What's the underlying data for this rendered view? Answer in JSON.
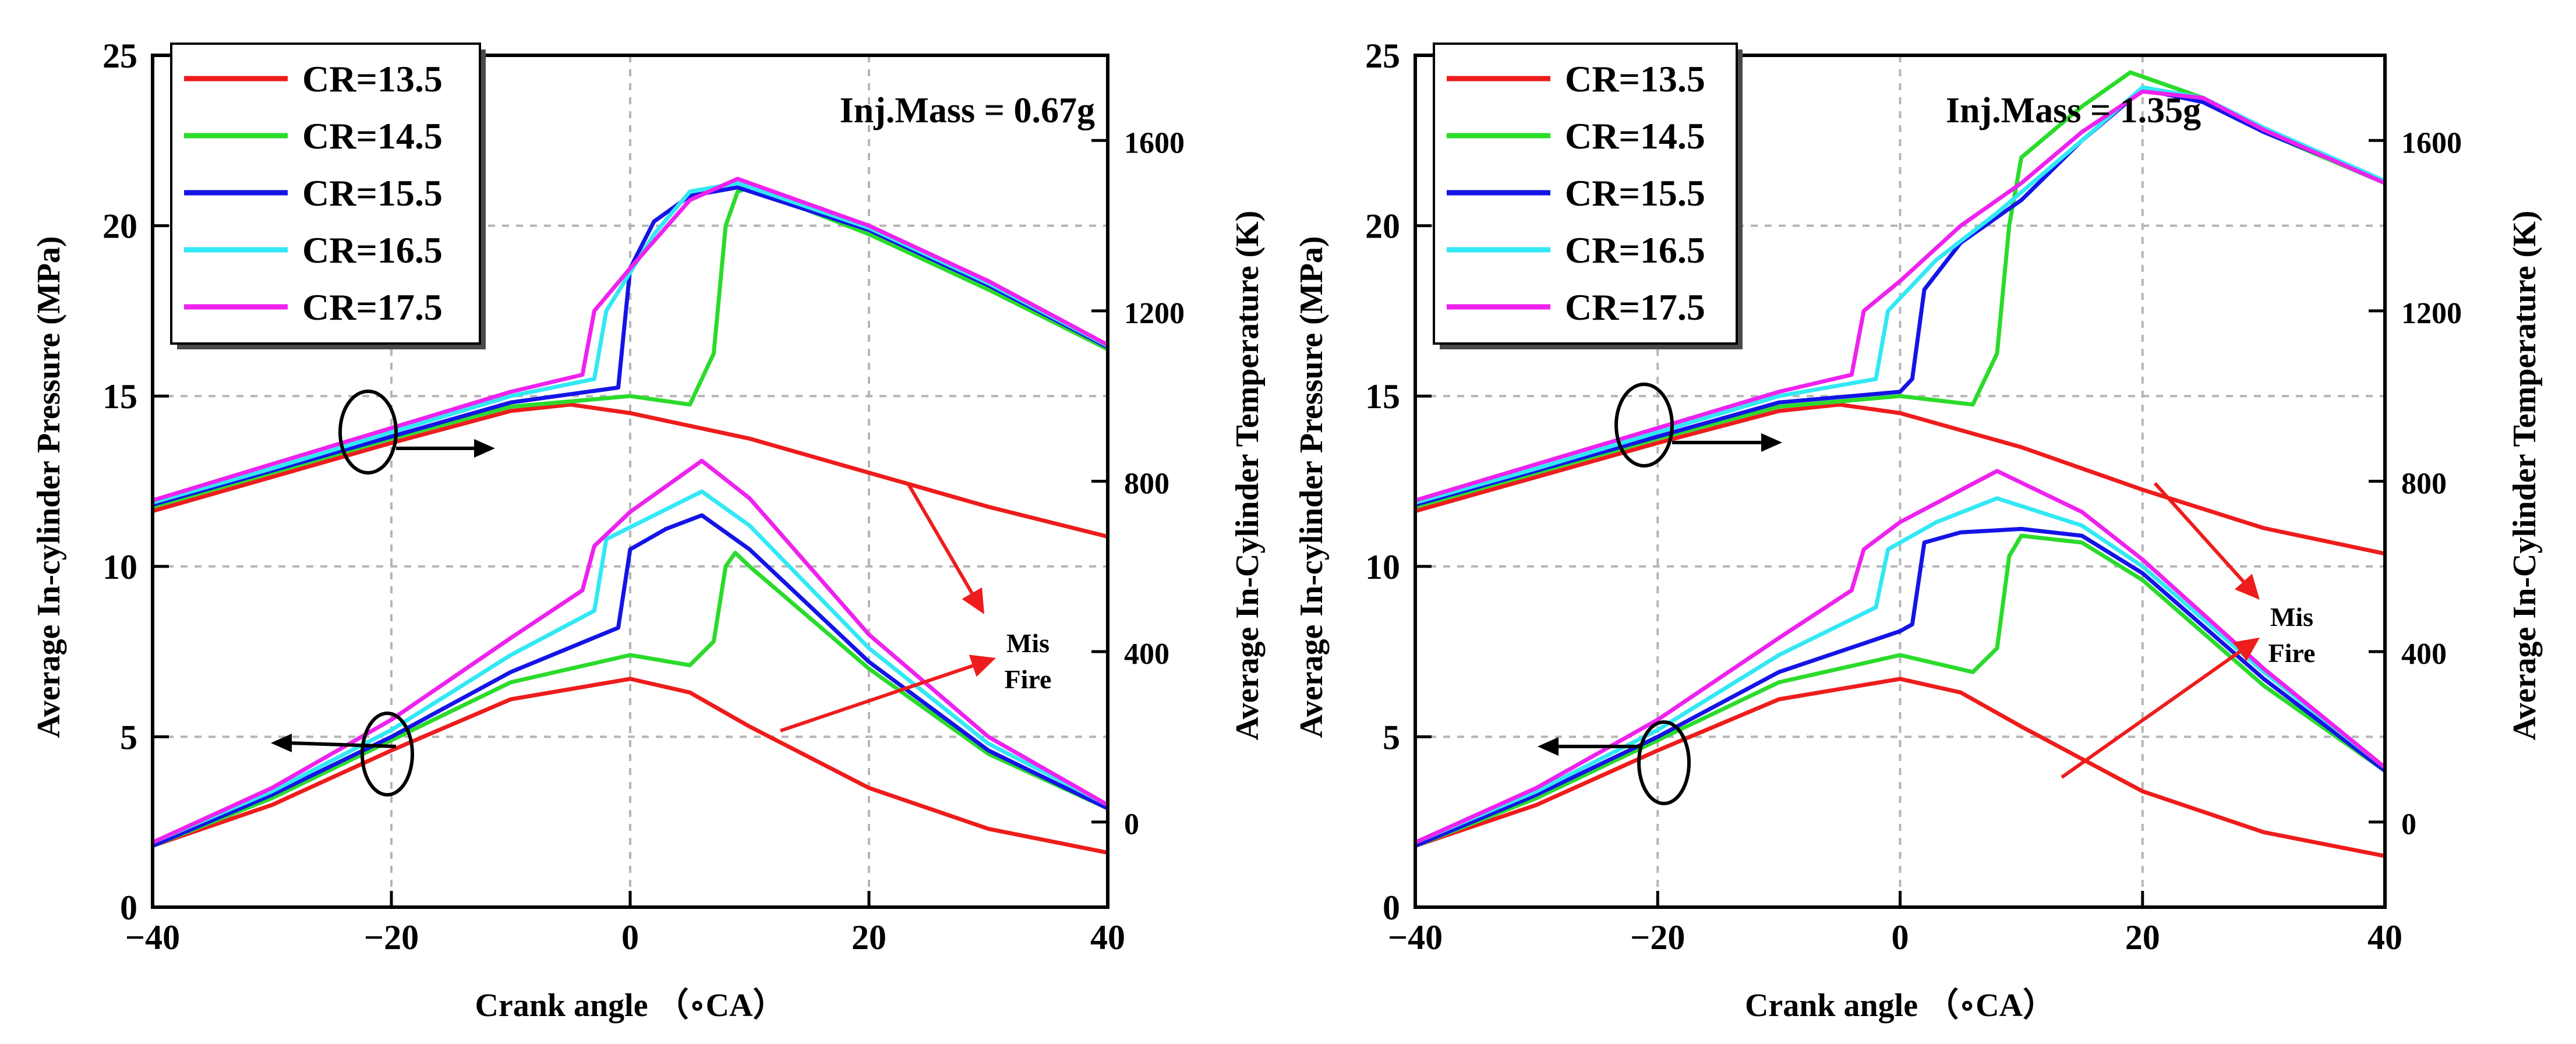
{
  "chart_data": [
    {
      "type": "line",
      "panel": "left",
      "annotation": "Inj.Mass = 0.67g",
      "xlabel": "Crank angle （∘CA）",
      "ylabel_left": "Average In-cylinder Pressure (MPa)",
      "ylabel_right": "Average In-Cylinder Temperature (K)",
      "xlim": [
        -40,
        40
      ],
      "ylim_left": [
        0,
        25
      ],
      "ylim_right": [
        -200,
        1800
      ],
      "xticks": [
        "−40",
        "−20",
        "0",
        "20",
        "40"
      ],
      "yticks_left": [
        "0",
        "5",
        "10",
        "15",
        "20",
        "25"
      ],
      "yticks_right": [
        "0",
        "400",
        "800",
        "1200",
        "1600"
      ],
      "legend": [
        "CR=13.5",
        "CR=14.5",
        "CR=15.5",
        "CR=16.5",
        "CR=17.5"
      ],
      "misfire_label": [
        "Mis",
        "Fire"
      ],
      "grid": true,
      "series": [
        {
          "name": "CR=13.5",
          "color": "#ee1c1c",
          "pressure": [
            [
              -40,
              1.8
            ],
            [
              -30,
              3.0
            ],
            [
              -20,
              4.6
            ],
            [
              -10,
              6.1
            ],
            [
              0,
              6.7
            ],
            [
              5,
              6.3
            ],
            [
              10,
              5.3
            ],
            [
              20,
              3.5
            ],
            [
              30,
              2.3
            ],
            [
              40,
              1.6
            ]
          ],
          "temperature": [
            [
              -40,
              730
            ],
            [
              -30,
              810
            ],
            [
              -20,
              890
            ],
            [
              -10,
              965
            ],
            [
              -5,
              980
            ],
            [
              0,
              960
            ],
            [
              10,
              900
            ],
            [
              20,
              820
            ],
            [
              30,
              740
            ],
            [
              40,
              670
            ]
          ]
        },
        {
          "name": "CR=14.5",
          "color": "#2bdb2b",
          "pressure": [
            [
              -40,
              1.8
            ],
            [
              -30,
              3.2
            ],
            [
              -20,
              4.9
            ],
            [
              -10,
              6.6
            ],
            [
              0,
              7.4
            ],
            [
              5,
              7.1
            ],
            [
              7,
              7.8
            ],
            [
              8,
              10.0
            ],
            [
              8.8,
              10.4
            ],
            [
              10,
              10.0
            ],
            [
              20,
              7.0
            ],
            [
              30,
              4.5
            ],
            [
              40,
              2.9
            ]
          ],
          "temperature": [
            [
              -40,
              740
            ],
            [
              -30,
              820
            ],
            [
              -20,
              900
            ],
            [
              -10,
              975
            ],
            [
              0,
              1000
            ],
            [
              5,
              980
            ],
            [
              7,
              1100
            ],
            [
              8,
              1400
            ],
            [
              9,
              1480
            ],
            [
              10,
              1490
            ],
            [
              20,
              1380
            ],
            [
              30,
              1250
            ],
            [
              40,
              1110
            ]
          ]
        },
        {
          "name": "CR=15.5",
          "color": "#1414e6",
          "pressure": [
            [
              -40,
              1.8
            ],
            [
              -30,
              3.3
            ],
            [
              -20,
              5.0
            ],
            [
              -10,
              6.9
            ],
            [
              -1,
              8.2
            ],
            [
              0,
              10.5
            ],
            [
              3,
              11.1
            ],
            [
              6,
              11.5
            ],
            [
              10,
              10.5
            ],
            [
              20,
              7.2
            ],
            [
              30,
              4.6
            ],
            [
              40,
              2.9
            ]
          ],
          "temperature": [
            [
              -40,
              745
            ],
            [
              -30,
              825
            ],
            [
              -20,
              905
            ],
            [
              -10,
              985
            ],
            [
              -1,
              1020
            ],
            [
              0,
              1300
            ],
            [
              2,
              1410
            ],
            [
              5,
              1470
            ],
            [
              9,
              1490
            ],
            [
              20,
              1390
            ],
            [
              30,
              1260
            ],
            [
              40,
              1115
            ]
          ]
        },
        {
          "name": "CR=16.5",
          "color": "#33e8f4",
          "pressure": [
            [
              -40,
              1.9
            ],
            [
              -30,
              3.4
            ],
            [
              -20,
              5.2
            ],
            [
              -10,
              7.4
            ],
            [
              -3,
              8.7
            ],
            [
              -2,
              10.8
            ],
            [
              2,
              11.5
            ],
            [
              6,
              12.2
            ],
            [
              10,
              11.2
            ],
            [
              20,
              7.6
            ],
            [
              30,
              4.8
            ],
            [
              40,
              3.0
            ]
          ],
          "temperature": [
            [
              -40,
              750
            ],
            [
              -30,
              830
            ],
            [
              -20,
              915
            ],
            [
              -10,
              1000
            ],
            [
              -3,
              1040
            ],
            [
              -2,
              1200
            ],
            [
              2,
              1380
            ],
            [
              5,
              1480
            ],
            [
              9,
              1500
            ],
            [
              20,
              1395
            ],
            [
              30,
              1265
            ],
            [
              40,
              1118
            ]
          ]
        },
        {
          "name": "CR=17.5",
          "color": "#ee22ee",
          "pressure": [
            [
              -40,
              1.9
            ],
            [
              -30,
              3.5
            ],
            [
              -20,
              5.5
            ],
            [
              -10,
              7.9
            ],
            [
              -4,
              9.3
            ],
            [
              -3,
              10.6
            ],
            [
              0,
              11.6
            ],
            [
              6,
              13.1
            ],
            [
              10,
              12.0
            ],
            [
              20,
              8.0
            ],
            [
              30,
              5.0
            ],
            [
              40,
              3.0
            ]
          ],
          "temperature": [
            [
              -40,
              755
            ],
            [
              -30,
              840
            ],
            [
              -20,
              925
            ],
            [
              -10,
              1010
            ],
            [
              -4,
              1050
            ],
            [
              -3,
              1200
            ],
            [
              0,
              1300
            ],
            [
              5,
              1460
            ],
            [
              9,
              1510
            ],
            [
              20,
              1400
            ],
            [
              30,
              1270
            ],
            [
              40,
              1120
            ]
          ]
        }
      ]
    },
    {
      "type": "line",
      "panel": "right",
      "annotation": "Inj.Mass = 1.35g",
      "xlabel": "Crank angle （∘CA）",
      "ylabel_left": "Average In-cylinder Pressure (MPa)",
      "ylabel_right": "Average In-Cylinder Temperature (K)",
      "xlim": [
        -40,
        40
      ],
      "ylim_left": [
        0,
        25
      ],
      "ylim_right": [
        -200,
        1800
      ],
      "xticks": [
        "−40",
        "−20",
        "0",
        "20",
        "40"
      ],
      "yticks_left": [
        "0",
        "5",
        "10",
        "15",
        "20",
        "25"
      ],
      "yticks_right": [
        "0",
        "400",
        "800",
        "1200",
        "1600"
      ],
      "legend": [
        "CR=13.5",
        "CR=14.5",
        "CR=15.5",
        "CR=16.5",
        "CR=17.5"
      ],
      "misfire_label": [
        "Mis",
        "Fire"
      ],
      "grid": true,
      "series": [
        {
          "name": "CR=13.5",
          "color": "#ee1c1c",
          "pressure": [
            [
              -40,
              1.8
            ],
            [
              -30,
              3.0
            ],
            [
              -20,
              4.6
            ],
            [
              -10,
              6.1
            ],
            [
              0,
              6.7
            ],
            [
              5,
              6.3
            ],
            [
              10,
              5.3
            ],
            [
              20,
              3.4
            ],
            [
              30,
              2.2
            ],
            [
              40,
              1.5
            ]
          ],
          "temperature": [
            [
              -40,
              730
            ],
            [
              -30,
              810
            ],
            [
              -20,
              890
            ],
            [
              -10,
              965
            ],
            [
              -5,
              980
            ],
            [
              0,
              960
            ],
            [
              10,
              880
            ],
            [
              20,
              780
            ],
            [
              30,
              690
            ],
            [
              40,
              630
            ]
          ]
        },
        {
          "name": "CR=14.5",
          "color": "#2bdb2b",
          "pressure": [
            [
              -40,
              1.8
            ],
            [
              -30,
              3.2
            ],
            [
              -20,
              4.9
            ],
            [
              -10,
              6.6
            ],
            [
              0,
              7.4
            ],
            [
              6,
              6.9
            ],
            [
              8,
              7.6
            ],
            [
              9,
              10.3
            ],
            [
              10,
              10.9
            ],
            [
              15,
              10.7
            ],
            [
              20,
              9.6
            ],
            [
              30,
              6.5
            ],
            [
              40,
              4.0
            ]
          ],
          "temperature": [
            [
              -40,
              740
            ],
            [
              -30,
              820
            ],
            [
              -20,
              900
            ],
            [
              -10,
              975
            ],
            [
              0,
              1000
            ],
            [
              6,
              980
            ],
            [
              8,
              1100
            ],
            [
              9,
              1400
            ],
            [
              10,
              1560
            ],
            [
              15,
              1680
            ],
            [
              19,
              1760
            ],
            [
              25,
              1700
            ],
            [
              30,
              1620
            ],
            [
              40,
              1500
            ]
          ]
        },
        {
          "name": "CR=15.5",
          "color": "#1414e6",
          "pressure": [
            [
              -40,
              1.8
            ],
            [
              -30,
              3.3
            ],
            [
              -20,
              5.0
            ],
            [
              -10,
              6.9
            ],
            [
              0,
              8.1
            ],
            [
              1,
              8.3
            ],
            [
              2,
              10.7
            ],
            [
              5,
              11.0
            ],
            [
              10,
              11.1
            ],
            [
              15,
              10.9
            ],
            [
              20,
              9.8
            ],
            [
              30,
              6.7
            ],
            [
              40,
              4.0
            ]
          ],
          "temperature": [
            [
              -40,
              745
            ],
            [
              -30,
              825
            ],
            [
              -20,
              905
            ],
            [
              -10,
              985
            ],
            [
              0,
              1010
            ],
            [
              1,
              1040
            ],
            [
              2,
              1250
            ],
            [
              5,
              1360
            ],
            [
              10,
              1460
            ],
            [
              15,
              1600
            ],
            [
              20,
              1720
            ],
            [
              25,
              1690
            ],
            [
              30,
              1620
            ],
            [
              40,
              1505
            ]
          ]
        },
        {
          "name": "CR=16.5",
          "color": "#33e8f4",
          "pressure": [
            [
              -40,
              1.9
            ],
            [
              -30,
              3.4
            ],
            [
              -20,
              5.2
            ],
            [
              -10,
              7.4
            ],
            [
              -2,
              8.8
            ],
            [
              -1,
              10.5
            ],
            [
              3,
              11.3
            ],
            [
              8,
              12.0
            ],
            [
              15,
              11.2
            ],
            [
              20,
              10.0
            ],
            [
              30,
              6.9
            ],
            [
              40,
              4.1
            ]
          ],
          "temperature": [
            [
              -40,
              750
            ],
            [
              -30,
              830
            ],
            [
              -20,
              915
            ],
            [
              -10,
              1000
            ],
            [
              -2,
              1040
            ],
            [
              -1,
              1200
            ],
            [
              3,
              1320
            ],
            [
              8,
              1430
            ],
            [
              15,
              1600
            ],
            [
              20,
              1725
            ],
            [
              25,
              1700
            ],
            [
              30,
              1630
            ],
            [
              40,
              1505
            ]
          ]
        },
        {
          "name": "CR=17.5",
          "color": "#ee22ee",
          "pressure": [
            [
              -40,
              1.9
            ],
            [
              -30,
              3.5
            ],
            [
              -20,
              5.5
            ],
            [
              -10,
              7.9
            ],
            [
              -4,
              9.3
            ],
            [
              -3,
              10.5
            ],
            [
              0,
              11.3
            ],
            [
              8,
              12.8
            ],
            [
              15,
              11.6
            ],
            [
              20,
              10.2
            ],
            [
              30,
              7.0
            ],
            [
              40,
              4.1
            ]
          ],
          "temperature": [
            [
              -40,
              755
            ],
            [
              -30,
              840
            ],
            [
              -20,
              925
            ],
            [
              -10,
              1010
            ],
            [
              -4,
              1050
            ],
            [
              -3,
              1200
            ],
            [
              0,
              1270
            ],
            [
              5,
              1400
            ],
            [
              10,
              1500
            ],
            [
              15,
              1620
            ],
            [
              20,
              1715
            ],
            [
              25,
              1700
            ],
            [
              30,
              1625
            ],
            [
              40,
              1500
            ]
          ]
        }
      ]
    }
  ]
}
